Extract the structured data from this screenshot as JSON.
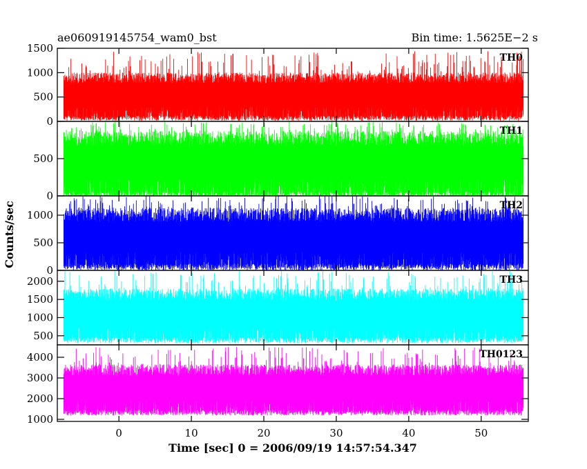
{
  "header": {
    "title": "ae060919145754_wam0_bst",
    "bin_time": "Bin time: 1.5625E−2 s"
  },
  "chart_data": {
    "type": "line",
    "xlabel": "Time [sec] 0 = 2006/09/19 14:57:54.347",
    "ylabel": "Counts/sec",
    "xlim": [
      -8.5,
      56.5
    ],
    "x_ticks": [
      0,
      10,
      20,
      30,
      40,
      50
    ],
    "x_range_data": [
      -7.6,
      55.8
    ],
    "grid": false,
    "legend": "none",
    "panels": [
      {
        "name": "TH0",
        "color": "#ff0000",
        "ylim": [
          0,
          1500
        ],
        "y_ticks": [
          0,
          500,
          1000,
          1500
        ],
        "band": [
          120,
          1000
        ],
        "mean": 560,
        "peak": 1450
      },
      {
        "name": "TH1",
        "color": "#00ff00",
        "ylim": [
          0,
          1000
        ],
        "y_ticks": [
          0,
          500
        ],
        "band": [
          60,
          870
        ],
        "mean": 430,
        "peak": 1000
      },
      {
        "name": "TH2",
        "color": "#0000ff",
        "ylim": [
          0,
          1350
        ],
        "y_ticks": [
          0,
          500,
          1000
        ],
        "band": [
          120,
          1130
        ],
        "mean": 600,
        "peak": 1350
      },
      {
        "name": "TH3",
        "color": "#00ffff",
        "ylim": [
          250,
          2300
        ],
        "y_ticks": [
          500,
          1000,
          1500,
          2000
        ],
        "band": [
          460,
          1800
        ],
        "mean": 1100,
        "peak": 2300
      },
      {
        "name": "TH0123",
        "color": "#ff00ff",
        "ylim": [
          900,
          4600
        ],
        "y_ticks": [
          1000,
          2000,
          3000,
          4000
        ],
        "band": [
          1450,
          3650
        ],
        "mean": 2550,
        "peak": 4500
      }
    ]
  }
}
